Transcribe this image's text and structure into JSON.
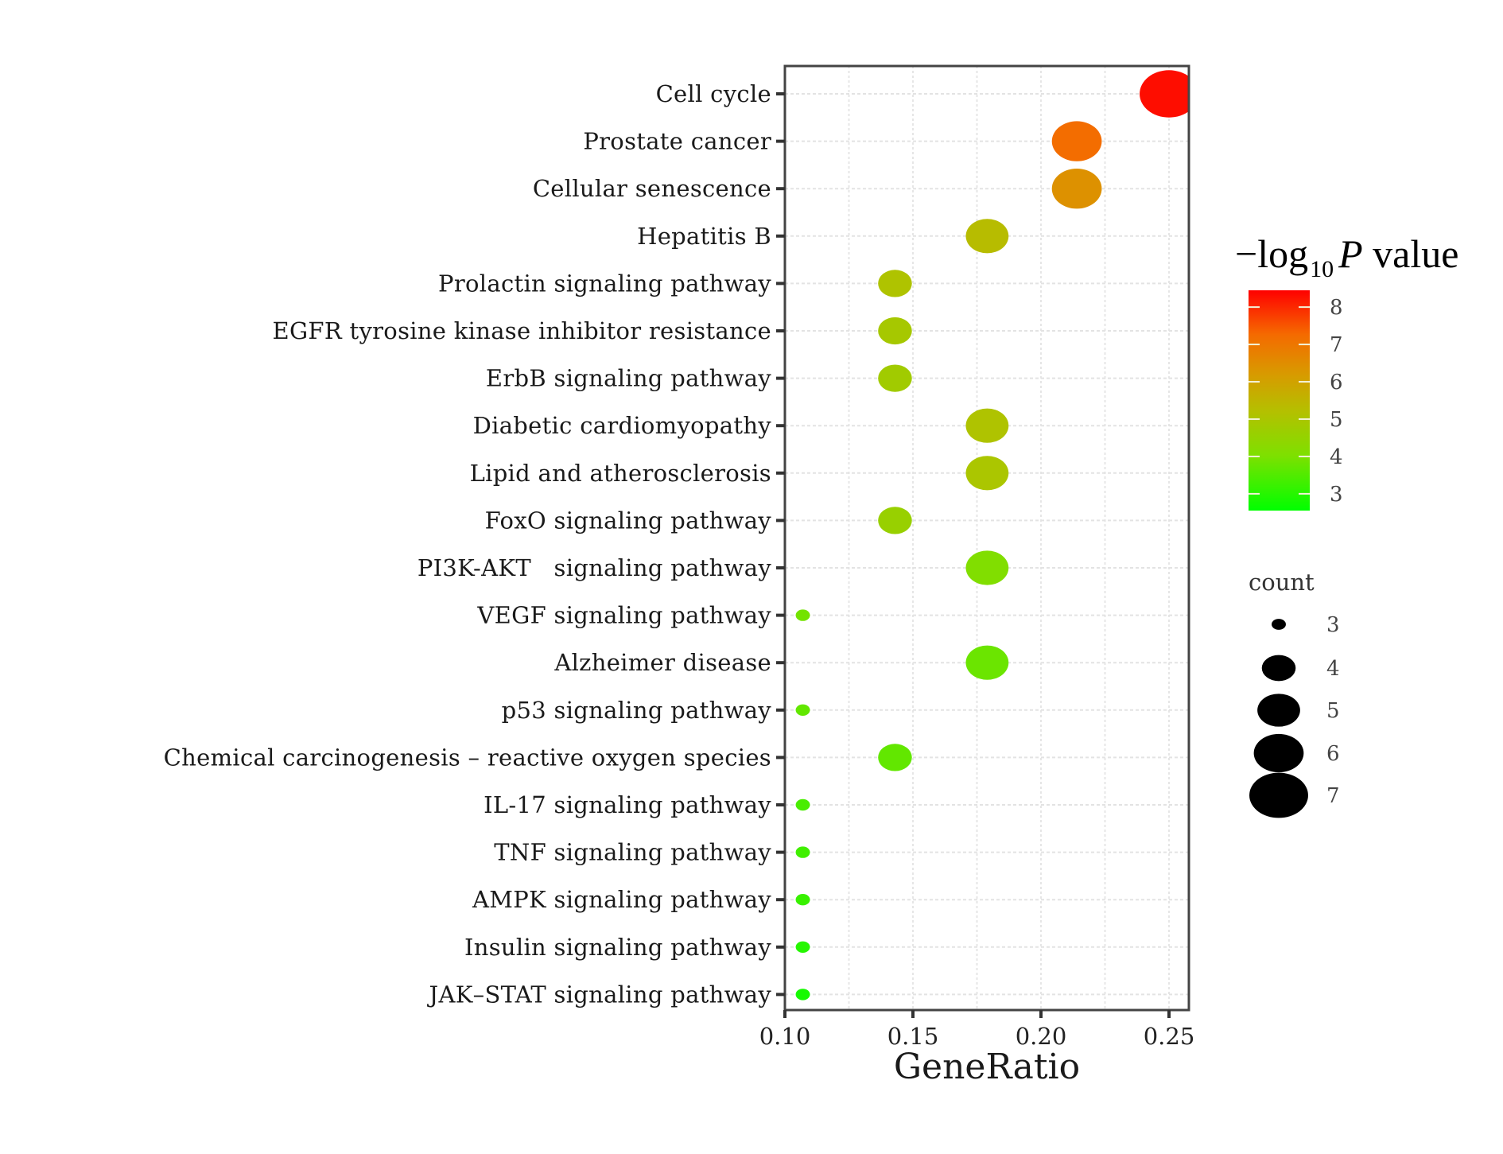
{
  "chart_data": {
    "type": "scatter",
    "subtype": "bubble",
    "title": "",
    "xlabel": "GeneRatio",
    "ylabel": "",
    "xlim": [
      0.1,
      0.26
    ],
    "x_ticks": [
      0.1,
      0.15,
      0.2,
      0.25
    ],
    "x_tick_labels": [
      "0.10",
      "0.15",
      "0.20",
      "0.25"
    ],
    "grid": true,
    "categories": [
      "Cell cycle",
      "Prostate cancer",
      "Cellular senescence",
      "Hepatitis B",
      "Prolactin signaling pathway",
      "EGFR tyrosine kinase inhibitor resistance",
      "ErbB signaling pathway",
      "Diabetic cardiomyopathy",
      "Lipid and atherosclerosis",
      "FoxO signaling pathway",
      "PI3K-AKT   signaling pathway",
      "VEGF signaling pathway",
      "Alzheimer disease",
      "p53 signaling pathway",
      "Chemical carcinogenesis – reactive oxygen species",
      "IL-17 signaling pathway",
      "TNF signaling pathway",
      "AMPK signaling pathway",
      "Insulin signaling pathway",
      "JAK–STAT signaling pathway"
    ],
    "points": [
      {
        "term": "Cell cycle",
        "gene_ratio": 0.25,
        "count": 7,
        "neg_log10_p": 8.3
      },
      {
        "term": "Prostate cancer",
        "gene_ratio": 0.214,
        "count": 6,
        "neg_log10_p": 7.2
      },
      {
        "term": "Cellular senescence",
        "gene_ratio": 0.214,
        "count": 6,
        "neg_log10_p": 6.4
      },
      {
        "term": "Hepatitis B",
        "gene_ratio": 0.179,
        "count": 5,
        "neg_log10_p": 5.3
      },
      {
        "term": "Prolactin signaling pathway",
        "gene_ratio": 0.143,
        "count": 4,
        "neg_log10_p": 5.1
      },
      {
        "term": "EGFR tyrosine kinase inhibitor resistance",
        "gene_ratio": 0.143,
        "count": 4,
        "neg_log10_p": 4.9
      },
      {
        "term": "ErbB signaling pathway",
        "gene_ratio": 0.143,
        "count": 4,
        "neg_log10_p": 4.8
      },
      {
        "term": "Diabetic cardiomyopathy",
        "gene_ratio": 0.179,
        "count": 5,
        "neg_log10_p": 5.1
      },
      {
        "term": "Lipid and atherosclerosis",
        "gene_ratio": 0.179,
        "count": 5,
        "neg_log10_p": 5.0
      },
      {
        "term": "FoxO signaling pathway",
        "gene_ratio": 0.143,
        "count": 4,
        "neg_log10_p": 4.6
      },
      {
        "term": "PI3K-AKT   signaling pathway",
        "gene_ratio": 0.179,
        "count": 5,
        "neg_log10_p": 4.1
      },
      {
        "term": "VEGF signaling pathway",
        "gene_ratio": 0.107,
        "count": 3,
        "neg_log10_p": 3.9
      },
      {
        "term": "Alzheimer disease",
        "gene_ratio": 0.179,
        "count": 5,
        "neg_log10_p": 3.8
      },
      {
        "term": "p53 signaling pathway",
        "gene_ratio": 0.107,
        "count": 3,
        "neg_log10_p": 3.7
      },
      {
        "term": "Chemical carcinogenesis – reactive oxygen species",
        "gene_ratio": 0.143,
        "count": 4,
        "neg_log10_p": 3.7
      },
      {
        "term": "IL-17 signaling pathway",
        "gene_ratio": 0.107,
        "count": 3,
        "neg_log10_p": 3.4
      },
      {
        "term": "TNF signaling pathway",
        "gene_ratio": 0.107,
        "count": 3,
        "neg_log10_p": 3.3
      },
      {
        "term": "AMPK signaling pathway",
        "gene_ratio": 0.107,
        "count": 3,
        "neg_log10_p": 3.2
      },
      {
        "term": "Insulin signaling pathway",
        "gene_ratio": 0.107,
        "count": 3,
        "neg_log10_p": 3.0
      },
      {
        "term": "JAK–STAT signaling pathway",
        "gene_ratio": 0.107,
        "count": 3,
        "neg_log10_p": 2.8
      }
    ],
    "color_legend": {
      "title_prefix": "−log",
      "title_subscript": "10",
      "title_italic": "P",
      "title_suffix": " value",
      "range": [
        2.55,
        8.45
      ],
      "ticks": [
        8,
        7,
        6,
        5,
        4,
        3
      ],
      "tick_labels": [
        "8",
        "7",
        "6",
        "5",
        "4",
        "3"
      ],
      "low_color": "#00ff00",
      "mid_color": "#c8b400",
      "high_color": "#ff0000",
      "placement": "right"
    },
    "size_legend": {
      "title": "count",
      "values": [
        3,
        4,
        5,
        6,
        7
      ],
      "labels": [
        "3",
        "4",
        "5",
        "6",
        "7"
      ],
      "color": "#000000",
      "placement": "right"
    }
  }
}
